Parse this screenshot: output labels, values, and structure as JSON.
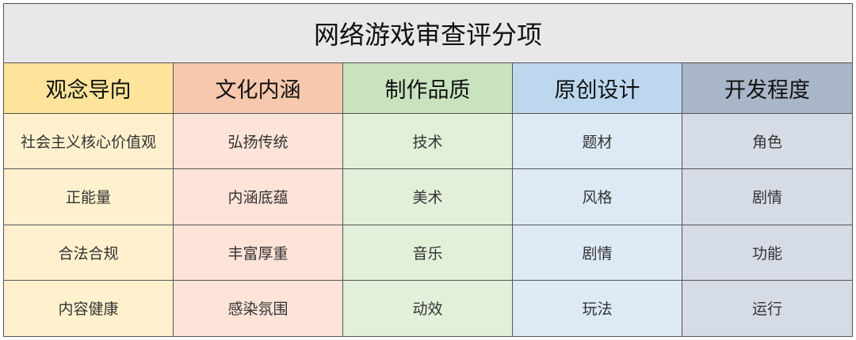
{
  "title": "网络游戏审查评分项",
  "colors": {
    "title_bg": "#e8e8e8",
    "header_bg": [
      "#fde49a",
      "#f7c8ad",
      "#c9e3bf",
      "#bdd7ef",
      "#a9b6c8"
    ],
    "body_bg": [
      "#fff1cd",
      "#fde3d8",
      "#e2efd9",
      "#dde9f5",
      "#d6dce5"
    ]
  },
  "columns": [
    {
      "header": "观念导向",
      "items": [
        "社会主义核心价值观",
        "正能量",
        "合法合规",
        "内容健康"
      ]
    },
    {
      "header": "文化内涵",
      "items": [
        "弘扬传统",
        "内涵底蕴",
        "丰富厚重",
        "感染氛围"
      ]
    },
    {
      "header": "制作品质",
      "items": [
        "技术",
        "美术",
        "音乐",
        "动效"
      ]
    },
    {
      "header": "原创设计",
      "items": [
        "题材",
        "风格",
        "剧情",
        "玩法"
      ]
    },
    {
      "header": "开发程度",
      "items": [
        "角色",
        "剧情",
        "功能",
        "运行"
      ]
    }
  ]
}
